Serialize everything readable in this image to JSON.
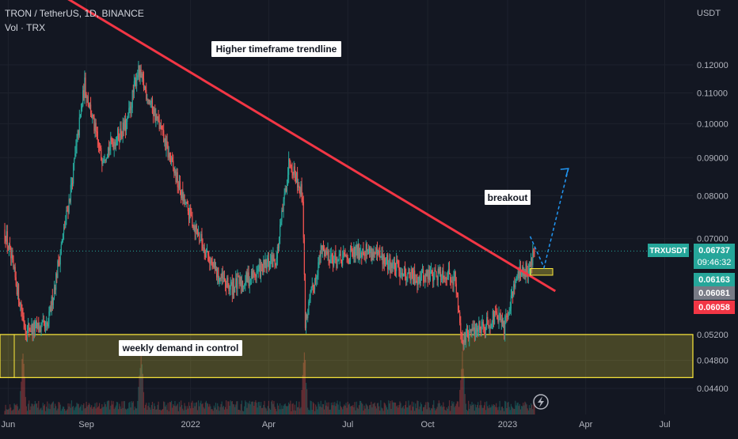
{
  "header": {
    "symbol_title": "TRON / TetherUS, 1D, BINANCE",
    "volume_label": "Vol · TRX",
    "currency": "USDT"
  },
  "annotations": {
    "trendline": "Higher timeframe trendline",
    "breakout": "breakout",
    "demand": "weekly demand in control"
  },
  "price_labels": {
    "symbol": "TRXUSDT",
    "last": "0.06737",
    "countdown": "09:46:32",
    "l1": "0.06163",
    "l2": "0.06081",
    "l3": "0.06058"
  },
  "colors": {
    "background": "#131722",
    "up": "#26a69a",
    "down": "#ef5350",
    "trendline": "#f23645",
    "demand_zone": "#ffeb3b",
    "projection": "#2196f3"
  },
  "chart_data": {
    "type": "candlestick",
    "scale": "log",
    "y_ticks": [
      "0.12000",
      "0.11000",
      "0.10000",
      "0.09000",
      "0.08000",
      "0.07000",
      "0.05200",
      "0.04800",
      "0.04400"
    ],
    "x_ticks": [
      "Jun",
      "Sep",
      "2022",
      "Apr",
      "Jul",
      "Oct",
      "2023",
      "Apr",
      "Jul"
    ],
    "ylim": [
      0.0425,
      0.145
    ],
    "anchors": [
      {
        "date": "2021-06-01",
        "price": 0.072
      },
      {
        "date": "2021-06-25",
        "price": 0.053
      },
      {
        "date": "2021-07-20",
        "price": 0.053
      },
      {
        "date": "2021-08-15",
        "price": 0.08
      },
      {
        "date": "2021-09-01",
        "price": 0.113
      },
      {
        "date": "2021-09-20",
        "price": 0.09
      },
      {
        "date": "2021-10-20",
        "price": 0.1
      },
      {
        "date": "2021-11-01",
        "price": 0.118
      },
      {
        "date": "2021-11-25",
        "price": 0.1
      },
      {
        "date": "2021-12-25",
        "price": 0.078
      },
      {
        "date": "2022-01-30",
        "price": 0.063
      },
      {
        "date": "2022-02-15",
        "price": 0.06
      },
      {
        "date": "2022-03-10",
        "price": 0.062
      },
      {
        "date": "2022-04-10",
        "price": 0.066
      },
      {
        "date": "2022-04-25",
        "price": 0.09
      },
      {
        "date": "2022-05-10",
        "price": 0.08
      },
      {
        "date": "2022-05-13",
        "price": 0.054
      },
      {
        "date": "2022-06-01",
        "price": 0.068
      },
      {
        "date": "2022-06-20",
        "price": 0.065
      },
      {
        "date": "2022-07-20",
        "price": 0.068
      },
      {
        "date": "2022-08-15",
        "price": 0.065
      },
      {
        "date": "2022-09-15",
        "price": 0.062
      },
      {
        "date": "2022-10-20",
        "price": 0.063
      },
      {
        "date": "2022-11-01",
        "price": 0.062
      },
      {
        "date": "2022-11-10",
        "price": 0.051
      },
      {
        "date": "2022-11-25",
        "price": 0.053
      },
      {
        "date": "2022-12-20",
        "price": 0.055
      },
      {
        "date": "2022-12-28",
        "price": 0.053
      },
      {
        "date": "2023-01-10",
        "price": 0.062
      },
      {
        "date": "2023-01-25",
        "price": 0.064
      },
      {
        "date": "2023-02-01",
        "price": 0.06737
      }
    ],
    "volume_spikes": [
      "2021-06-22",
      "2021-11-05",
      "2022-05-12",
      "2022-11-10"
    ],
    "trendline": {
      "from": {
        "date": "2021-06-30",
        "price": 0.158
      },
      "to": {
        "date": "2023-02-25",
        "price": 0.0595
      }
    },
    "demand_zone": {
      "top": 0.052,
      "bottom": 0.0455
    },
    "breakout_box": {
      "top": 0.0638,
      "bottom": 0.0625
    },
    "projection": [
      {
        "date": "2023-01-27",
        "price": 0.0705
      },
      {
        "date": "2023-02-12",
        "price": 0.064
      },
      {
        "date": "2023-03-12",
        "price": 0.087
      }
    ],
    "last_price": 0.06737
  }
}
